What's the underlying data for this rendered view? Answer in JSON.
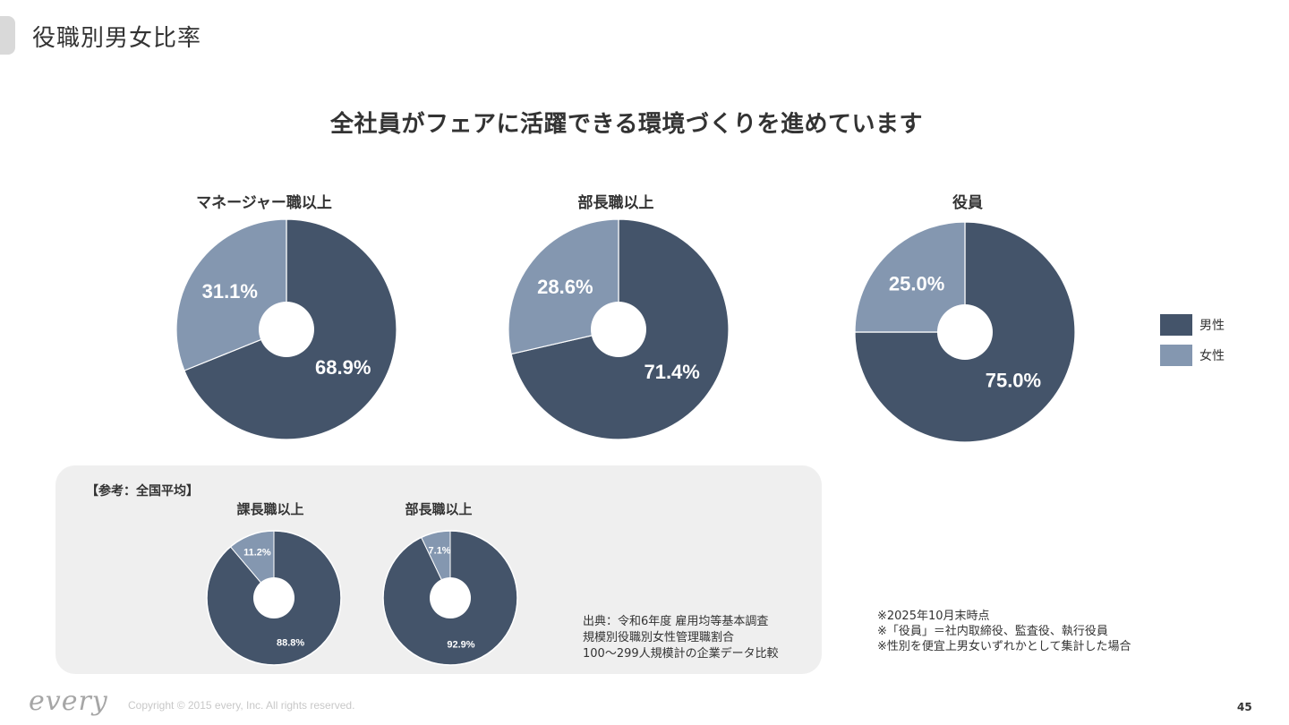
{
  "page": {
    "title": "役職別男女比率",
    "headline": "全社員がフェアに活躍できる環境づくりを進めています",
    "page_number": "45",
    "copyright": "Copyright © 2015 every, Inc. All rights reserved.",
    "logo_text": "every"
  },
  "colors": {
    "male": "#44546a",
    "female": "#8497b0",
    "slice_border": "#ffffff"
  },
  "legend": [
    {
      "name": "男性",
      "color": "#44546a"
    },
    {
      "name": "女性",
      "color": "#8497b0"
    }
  ],
  "reference": {
    "heading": "【参考：全国平均】",
    "source_lines": [
      "出典：令和6年度 雇用均等基本調査",
      "規模別役職別女性管理職割合",
      "100〜299人規模計の企業データ比較"
    ]
  },
  "notes": [
    "※2025年10月末時点",
    "※「役員」＝社内取締役、監査役、執行役員",
    "※性別を便宜上男女いずれかとして集計した場合"
  ],
  "chart_data": [
    {
      "type": "pie",
      "title": "マネージャー職以上",
      "slices": [
        {
          "name": "男性",
          "value": 68.9,
          "label": "68.9%"
        },
        {
          "name": "女性",
          "value": 31.1,
          "label": "31.1%"
        }
      ]
    },
    {
      "type": "pie",
      "title": "部長職以上",
      "slices": [
        {
          "name": "男性",
          "value": 71.4,
          "label": "71.4%"
        },
        {
          "name": "女性",
          "value": 28.6,
          "label": "28.6%"
        }
      ]
    },
    {
      "type": "pie",
      "title": "役員",
      "slices": [
        {
          "name": "男性",
          "value": 75.0,
          "label": "75.0%"
        },
        {
          "name": "女性",
          "value": 25.0,
          "label": "25.0%"
        }
      ]
    },
    {
      "type": "pie",
      "title": "課長職以上",
      "slices": [
        {
          "name": "男性",
          "value": 88.8,
          "label": "88.8%"
        },
        {
          "name": "女性",
          "value": 11.2,
          "label": "11.2%"
        }
      ]
    },
    {
      "type": "pie",
      "title": "部長職以上",
      "slices": [
        {
          "name": "男性",
          "value": 92.9,
          "label": "92.9%"
        },
        {
          "name": "女性",
          "value": 7.1,
          "label": "7.1%"
        }
      ]
    }
  ]
}
